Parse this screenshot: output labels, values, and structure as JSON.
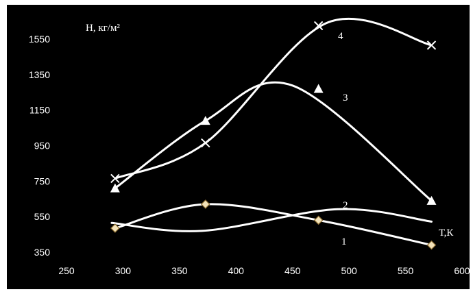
{
  "chart_data": {
    "type": "line",
    "title": "",
    "ylabel": "Н, кг/м²",
    "xlabel": "Т,К",
    "xlim": [
      250,
      600
    ],
    "ylim": [
      350,
      1650
    ],
    "xticks": [
      250,
      300,
      350,
      400,
      450,
      500,
      550,
      600
    ],
    "yticks": [
      350,
      550,
      750,
      950,
      1150,
      1350,
      1550
    ],
    "grid": false,
    "background": "#000000",
    "line_color": "#ffffff",
    "series": [
      {
        "name": "1",
        "marker": "diamond",
        "marker_color": "#f3e2b8",
        "points": [
          [
            293,
            485
          ],
          [
            373,
            620
          ],
          [
            473,
            530
          ],
          [
            573,
            390
          ]
        ],
        "curve": [
          [
            293,
            485
          ],
          [
            373,
            620
          ],
          [
            473,
            530
          ],
          [
            573,
            390
          ]
        ]
      },
      {
        "name": "2",
        "marker": "none",
        "points": [],
        "curve": [
          [
            290,
            515
          ],
          [
            370,
            470
          ],
          [
            490,
            592
          ],
          [
            573,
            522
          ]
        ]
      },
      {
        "name": "3",
        "marker": "triangle",
        "points": [
          [
            293,
            710
          ],
          [
            373,
            1090
          ],
          [
            473,
            1270
          ],
          [
            573,
            640
          ]
        ],
        "curve": [
          [
            293,
            710
          ],
          [
            373,
            1090
          ],
          [
            450,
            1288
          ],
          [
            573,
            640
          ]
        ]
      },
      {
        "name": "4",
        "marker": "x",
        "points": [
          [
            293,
            765
          ],
          [
            373,
            965
          ],
          [
            473,
            1625
          ],
          [
            573,
            1515
          ]
        ],
        "curve": [
          [
            293,
            765
          ],
          [
            373,
            965
          ],
          [
            480,
            1640
          ],
          [
            573,
            1515
          ]
        ]
      }
    ]
  }
}
